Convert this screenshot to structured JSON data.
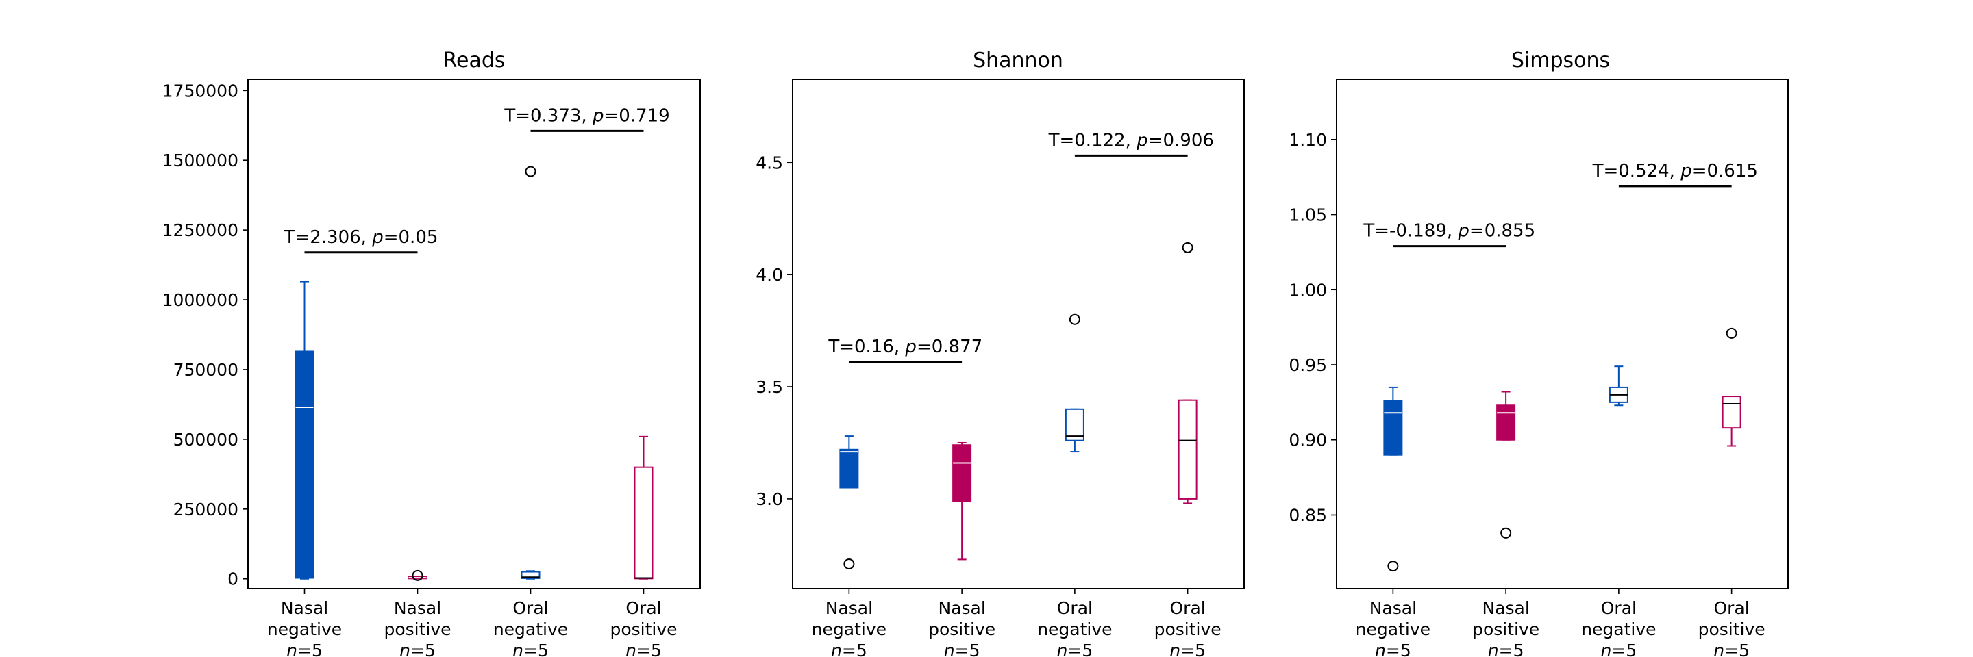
{
  "chart_data": [
    {
      "type": "box",
      "title": "Reads",
      "ylim": [
        -35000,
        1790000
      ],
      "yticks": [
        0,
        250000,
        500000,
        750000,
        1000000,
        1250000,
        1500000,
        1750000
      ],
      "ytick_labels": [
        "0",
        "250000",
        "500000",
        "750000",
        "1000000",
        "1250000",
        "1500000",
        "1750000"
      ],
      "groups": [
        {
          "line1": "Nasal",
          "line2": "negative",
          "n_label": "n=5",
          "color": "#0050b8",
          "filled": true,
          "q1": 3000,
          "median": 615000,
          "q3": 815000,
          "whisker_low": 0,
          "whisker_high": 1065000,
          "outliers": []
        },
        {
          "line1": "Nasal",
          "line2": "positive",
          "n_label": "n=5",
          "color": "#b5005b",
          "filled": true,
          "q1": 1000,
          "median": 4000,
          "q3": 7000,
          "whisker_low": 0,
          "whisker_high": 9000,
          "outliers": [
            12000
          ]
        },
        {
          "line1": "Oral",
          "line2": "negative",
          "n_label": "n=5",
          "color": "#0050b8",
          "filled": false,
          "q1": 2000,
          "median": 6000,
          "q3": 25000,
          "whisker_low": 0,
          "whisker_high": 28000,
          "outliers": [
            1460000
          ]
        },
        {
          "line1": "Oral",
          "line2": "positive",
          "n_label": "n=5",
          "color": "#b5005b",
          "filled": false,
          "q1": 1000,
          "median": 3000,
          "q3": 400000,
          "whisker_low": 0,
          "whisker_high": 510000,
          "outliers": []
        }
      ],
      "comparisons": [
        {
          "from": 0,
          "to": 1,
          "y": 1170000,
          "t_text": "T=2.306, ",
          "p_symbol": "p",
          "p_text": "=0.05"
        },
        {
          "from": 2,
          "to": 3,
          "y": 1605000,
          "t_text": "T=0.373, ",
          "p_symbol": "p",
          "p_text": "=0.719"
        }
      ]
    },
    {
      "type": "box",
      "title": "Shannon",
      "ylim": [
        2.6,
        4.87
      ],
      "yticks": [
        3.0,
        3.5,
        4.0,
        4.5
      ],
      "ytick_labels": [
        "3.0",
        "3.5",
        "4.0",
        "4.5"
      ],
      "groups": [
        {
          "line1": "Nasal",
          "line2": "negative",
          "n_label": "n=5",
          "color": "#0050b8",
          "filled": true,
          "q1": 3.05,
          "median": 3.21,
          "q3": 3.22,
          "whisker_low": 3.05,
          "whisker_high": 3.28,
          "outliers": [
            2.71
          ]
        },
        {
          "line1": "Nasal",
          "line2": "positive",
          "n_label": "n=5",
          "color": "#b5005b",
          "filled": true,
          "q1": 2.99,
          "median": 3.16,
          "q3": 3.24,
          "whisker_low": 2.73,
          "whisker_high": 3.25,
          "outliers": []
        },
        {
          "line1": "Oral",
          "line2": "negative",
          "n_label": "n=5",
          "color": "#0050b8",
          "filled": false,
          "q1": 3.26,
          "median": 3.28,
          "q3": 3.4,
          "whisker_low": 3.21,
          "whisker_high": 3.4,
          "outliers": [
            3.8
          ]
        },
        {
          "line1": "Oral",
          "line2": "positive",
          "n_label": "n=5",
          "color": "#b5005b",
          "filled": false,
          "q1": 3.0,
          "median": 3.26,
          "q3": 3.44,
          "whisker_low": 2.98,
          "whisker_high": 3.44,
          "outliers": [
            4.12
          ]
        }
      ],
      "comparisons": [
        {
          "from": 0,
          "to": 1,
          "y": 3.61,
          "t_text": "T=0.16, ",
          "p_symbol": "p",
          "p_text": "=0.877"
        },
        {
          "from": 2,
          "to": 3,
          "y": 4.53,
          "t_text": "T=0.122, ",
          "p_symbol": "p",
          "p_text": "=0.906"
        }
      ]
    },
    {
      "type": "box",
      "title": "Simpsons",
      "ylim": [
        0.801,
        1.14
      ],
      "yticks": [
        0.85,
        0.9,
        0.95,
        1.0,
        1.05,
        1.1
      ],
      "ytick_labels": [
        "0.85",
        "0.90",
        "0.95",
        "1.00",
        "1.05",
        "1.10"
      ],
      "groups": [
        {
          "line1": "Nasal",
          "line2": "negative",
          "n_label": "n=5",
          "color": "#0050b8",
          "filled": true,
          "q1": 0.89,
          "median": 0.918,
          "q3": 0.926,
          "whisker_low": 0.89,
          "whisker_high": 0.935,
          "outliers": [
            0.816
          ]
        },
        {
          "line1": "Nasal",
          "line2": "positive",
          "n_label": "n=5",
          "color": "#b5005b",
          "filled": true,
          "q1": 0.9,
          "median": 0.918,
          "q3": 0.923,
          "whisker_low": 0.9,
          "whisker_high": 0.932,
          "outliers": [
            0.838
          ]
        },
        {
          "line1": "Oral",
          "line2": "negative",
          "n_label": "n=5",
          "color": "#0050b8",
          "filled": false,
          "q1": 0.925,
          "median": 0.93,
          "q3": 0.935,
          "whisker_low": 0.923,
          "whisker_high": 0.949,
          "outliers": []
        },
        {
          "line1": "Oral",
          "line2": "positive",
          "n_label": "n=5",
          "color": "#b5005b",
          "filled": false,
          "q1": 0.908,
          "median": 0.924,
          "q3": 0.929,
          "whisker_low": 0.896,
          "whisker_high": 0.929,
          "outliers": [
            0.971
          ]
        }
      ],
      "comparisons": [
        {
          "from": 0,
          "to": 1,
          "y": 1.029,
          "t_text": "T=-0.189, ",
          "p_symbol": "p",
          "p_text": "=0.855"
        },
        {
          "from": 2,
          "to": 3,
          "y": 1.069,
          "t_text": "T=0.524, ",
          "p_symbol": "p",
          "p_text": "=0.615"
        }
      ]
    }
  ]
}
